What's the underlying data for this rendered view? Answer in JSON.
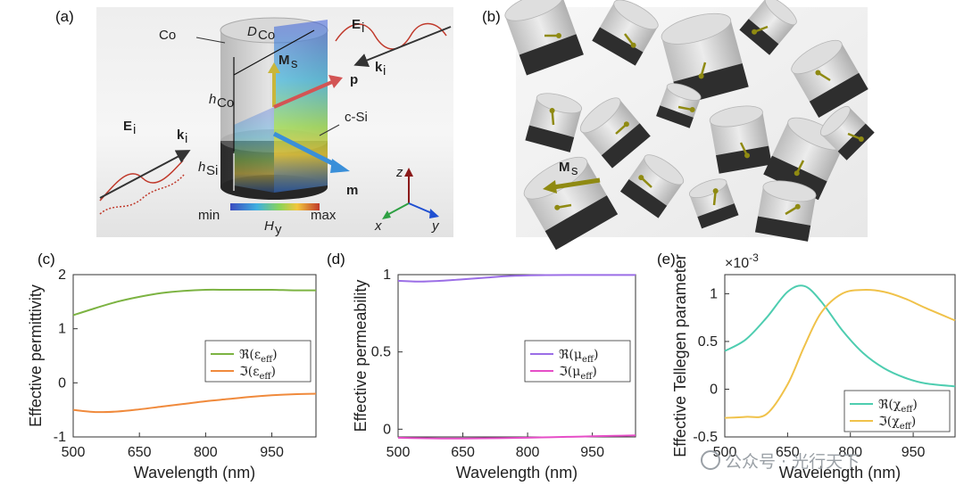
{
  "figure": {
    "panel_labels": [
      "(a)",
      "(b)",
      "(c)",
      "(d)",
      "(e)"
    ],
    "watermark": "公众号 · 光行天下"
  },
  "panel_a": {
    "labels": {
      "co": "Co",
      "csi": "c-Si",
      "d_co": "D",
      "d_co_sub": "Co",
      "h_co": "h",
      "h_co_sub": "Co",
      "h_si": "h",
      "h_si_sub": "Si",
      "ei_top": "E",
      "ei_top_sub": "i",
      "ki_top": "k",
      "ki_top_sub": "i",
      "ei_left": "E",
      "ei_left_sub": "i",
      "ki_left": "k",
      "ki_left_sub": "i",
      "ms": "M",
      "ms_sub": "s",
      "p": "p",
      "m": "m",
      "axis_z": "z",
      "axis_x": "x",
      "axis_y": "y",
      "cbar_min": "min",
      "cbar_max": "max",
      "cbar_label": "H",
      "cbar_sub": "y"
    },
    "colors": {
      "e_field": "#c0392b",
      "p_arrow": "#d35454",
      "m_arrow": "#3a8fd9",
      "ms_arrow": "#c9b63a",
      "z_axis": "#8b1a1a",
      "x_axis": "#2ea043",
      "y_axis": "#1f4fd1"
    }
  },
  "panel_b": {
    "labels": {
      "ms": "M",
      "ms_sub": "s"
    },
    "colors": {
      "arrow": "#8f8a12"
    }
  },
  "chart_data": [
    {
      "type": "line",
      "panel": "(c)",
      "xlabel": "Wavelength (nm)",
      "ylabel": "Effective permittivity",
      "xlim": [
        500,
        1050
      ],
      "ylim": [
        -1,
        2
      ],
      "xticks": [
        500,
        650,
        800,
        950
      ],
      "yticks": [
        -1,
        0,
        1,
        2
      ],
      "legend_position": "right",
      "series": [
        {
          "name": "ℜ(ε",
          "name_sub": "eff",
          "name_close": ")",
          "color": "#7cb342",
          "x": [
            500,
            550,
            600,
            650,
            700,
            750,
            800,
            850,
            900,
            950,
            1000,
            1050
          ],
          "y": [
            1.25,
            1.38,
            1.5,
            1.59,
            1.66,
            1.7,
            1.72,
            1.72,
            1.72,
            1.72,
            1.71,
            1.71
          ]
        },
        {
          "name": "ℑ(ε",
          "name_sub": "eff",
          "name_close": ")",
          "color": "#f08a3c",
          "x": [
            500,
            550,
            600,
            650,
            700,
            750,
            800,
            850,
            900,
            950,
            1000,
            1050
          ],
          "y": [
            -0.5,
            -0.54,
            -0.53,
            -0.49,
            -0.44,
            -0.39,
            -0.34,
            -0.3,
            -0.26,
            -0.23,
            -0.21,
            -0.2
          ]
        }
      ]
    },
    {
      "type": "line",
      "panel": "(d)",
      "xlabel": "Wavelength (nm)",
      "ylabel": "Effective permeability",
      "xlim": [
        500,
        1050
      ],
      "ylim": [
        -0.05,
        1
      ],
      "xticks": [
        500,
        650,
        800,
        950
      ],
      "yticks": [
        0,
        0.5,
        1
      ],
      "legend_position": "right",
      "series": [
        {
          "name": "ℜ(μ",
          "name_sub": "eff",
          "name_close": ")",
          "color": "#9b6ee6",
          "x": [
            500,
            550,
            600,
            650,
            700,
            750,
            800,
            850,
            900,
            950,
            1000,
            1050
          ],
          "y": [
            0.96,
            0.955,
            0.96,
            0.97,
            0.98,
            0.99,
            0.995,
            0.997,
            0.998,
            0.998,
            0.998,
            0.998
          ]
        },
        {
          "name": "ℑ(μ",
          "name_sub": "eff",
          "name_close": ")",
          "color": "#e64ec7",
          "x": [
            500,
            550,
            600,
            650,
            700,
            750,
            800,
            850,
            900,
            950,
            1000,
            1050
          ],
          "y": [
            -0.055,
            -0.058,
            -0.06,
            -0.06,
            -0.059,
            -0.057,
            -0.055,
            -0.052,
            -0.049,
            -0.046,
            -0.043,
            -0.04
          ]
        }
      ]
    },
    {
      "type": "line",
      "panel": "(e)",
      "xlabel": "Wavelength (nm)",
      "ylabel": "Effective Tellegen parameter",
      "scale_label": "×10",
      "scale_exp": "-3",
      "xlim": [
        500,
        1050
      ],
      "ylim": [
        -0.5,
        1.2
      ],
      "xticks": [
        500,
        650,
        800,
        950
      ],
      "yticks": [
        -0.5,
        0,
        0.5,
        1
      ],
      "legend_position": "bottom-right",
      "series": [
        {
          "name": "ℜ(χ",
          "name_sub": "eff",
          "name_close": ")",
          "color": "#4ecdb0",
          "x": [
            500,
            550,
            600,
            650,
            690,
            730,
            780,
            830,
            880,
            930,
            980,
            1050
          ],
          "y": [
            0.4,
            0.52,
            0.75,
            1.02,
            1.08,
            0.92,
            0.62,
            0.38,
            0.22,
            0.12,
            0.06,
            0.03
          ]
        },
        {
          "name": "ℑ(χ",
          "name_sub": "eff",
          "name_close": ")",
          "color": "#f0c24a",
          "x": [
            500,
            550,
            600,
            650,
            690,
            730,
            780,
            830,
            880,
            930,
            980,
            1050
          ],
          "y": [
            -0.3,
            -0.29,
            -0.26,
            0.05,
            0.45,
            0.8,
            1.0,
            1.04,
            1.02,
            0.95,
            0.85,
            0.72
          ]
        }
      ]
    }
  ]
}
